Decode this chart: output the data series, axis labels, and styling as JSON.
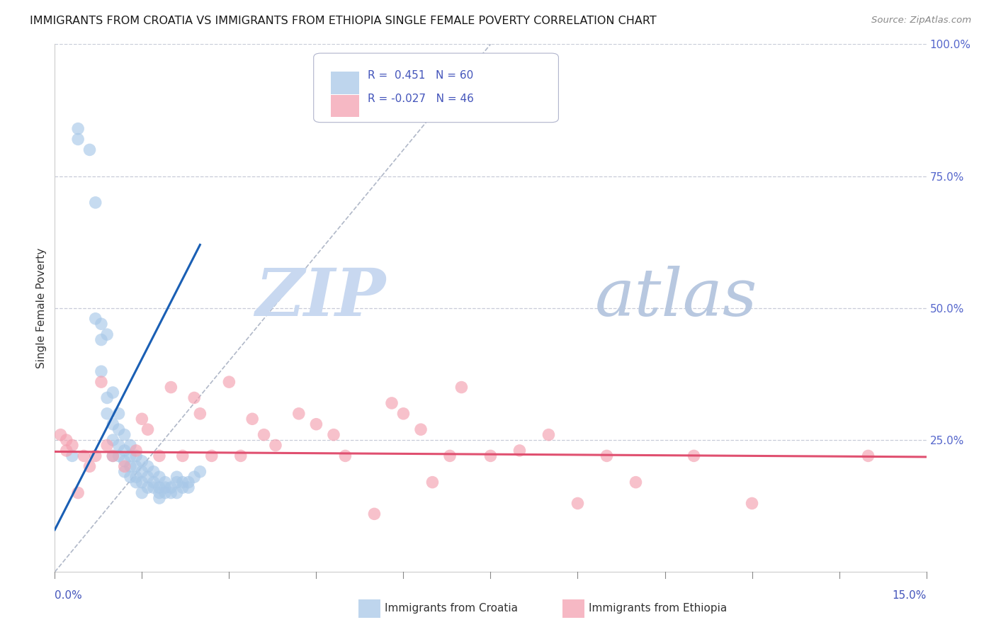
{
  "title": "IMMIGRANTS FROM CROATIA VS IMMIGRANTS FROM ETHIOPIA SINGLE FEMALE POVERTY CORRELATION CHART",
  "source": "Source: ZipAtlas.com",
  "ylabel": "Single Female Poverty",
  "xmin": 0.0,
  "xmax": 0.15,
  "ymin": 0.0,
  "ymax": 1.0,
  "croatia_R": 0.451,
  "croatia_N": 60,
  "ethiopia_R": -0.027,
  "ethiopia_N": 46,
  "croatia_color": "#a8c8e8",
  "ethiopia_color": "#f4a0b0",
  "croatia_trend_color": "#1a5fb4",
  "ethiopia_trend_color": "#e05070",
  "ref_line_color": "#b0b8c8",
  "grid_color": "#c8ccd8",
  "right_tick_color": "#5566cc",
  "title_color": "#1a1a1a",
  "watermark_zip_color": "#c8d8f0",
  "watermark_atlas_color": "#c0d4e8",
  "legend_border_color": "#b0b4cc",
  "axis_tick_color": "#4455bb",
  "croatia_scatter_x": [
    0.003,
    0.004,
    0.004,
    0.006,
    0.007,
    0.007,
    0.008,
    0.008,
    0.008,
    0.009,
    0.009,
    0.009,
    0.01,
    0.01,
    0.01,
    0.01,
    0.011,
    0.011,
    0.011,
    0.011,
    0.012,
    0.012,
    0.012,
    0.012,
    0.013,
    0.013,
    0.013,
    0.013,
    0.014,
    0.014,
    0.014,
    0.014,
    0.015,
    0.015,
    0.015,
    0.015,
    0.016,
    0.016,
    0.016,
    0.017,
    0.017,
    0.017,
    0.018,
    0.018,
    0.018,
    0.018,
    0.019,
    0.019,
    0.019,
    0.02,
    0.02,
    0.021,
    0.021,
    0.021,
    0.022,
    0.022,
    0.023,
    0.023,
    0.024,
    0.025
  ],
  "croatia_scatter_y": [
    0.22,
    0.84,
    0.82,
    0.8,
    0.7,
    0.48,
    0.47,
    0.44,
    0.38,
    0.45,
    0.33,
    0.3,
    0.34,
    0.28,
    0.25,
    0.22,
    0.3,
    0.27,
    0.24,
    0.22,
    0.26,
    0.23,
    0.21,
    0.19,
    0.24,
    0.22,
    0.2,
    0.18,
    0.22,
    0.2,
    0.18,
    0.17,
    0.21,
    0.19,
    0.17,
    0.15,
    0.2,
    0.18,
    0.16,
    0.19,
    0.17,
    0.16,
    0.18,
    0.16,
    0.15,
    0.14,
    0.17,
    0.16,
    0.15,
    0.16,
    0.15,
    0.18,
    0.17,
    0.15,
    0.17,
    0.16,
    0.17,
    0.16,
    0.18,
    0.19
  ],
  "ethiopia_scatter_x": [
    0.001,
    0.002,
    0.002,
    0.003,
    0.004,
    0.005,
    0.006,
    0.007,
    0.008,
    0.009,
    0.01,
    0.012,
    0.014,
    0.015,
    0.016,
    0.018,
    0.02,
    0.022,
    0.024,
    0.025,
    0.027,
    0.03,
    0.032,
    0.034,
    0.036,
    0.038,
    0.042,
    0.045,
    0.048,
    0.05,
    0.055,
    0.058,
    0.06,
    0.063,
    0.065,
    0.068,
    0.07,
    0.075,
    0.08,
    0.085,
    0.09,
    0.095,
    0.1,
    0.11,
    0.12,
    0.14
  ],
  "ethiopia_scatter_y": [
    0.26,
    0.25,
    0.23,
    0.24,
    0.15,
    0.22,
    0.2,
    0.22,
    0.36,
    0.24,
    0.22,
    0.2,
    0.23,
    0.29,
    0.27,
    0.22,
    0.35,
    0.22,
    0.33,
    0.3,
    0.22,
    0.36,
    0.22,
    0.29,
    0.26,
    0.24,
    0.3,
    0.28,
    0.26,
    0.22,
    0.11,
    0.32,
    0.3,
    0.27,
    0.17,
    0.22,
    0.35,
    0.22,
    0.23,
    0.26,
    0.13,
    0.22,
    0.17,
    0.22,
    0.13,
    0.22
  ],
  "croatia_trend_x0": 0.0,
  "croatia_trend_y0": 0.08,
  "croatia_trend_x1": 0.025,
  "croatia_trend_y1": 0.62,
  "ethiopia_trend_x0": 0.0,
  "ethiopia_trend_y0": 0.228,
  "ethiopia_trend_x1": 0.15,
  "ethiopia_trend_y1": 0.218,
  "ref_line_x0": 0.0,
  "ref_line_y0": 0.0,
  "ref_line_x1": 0.075,
  "ref_line_y1": 1.0
}
